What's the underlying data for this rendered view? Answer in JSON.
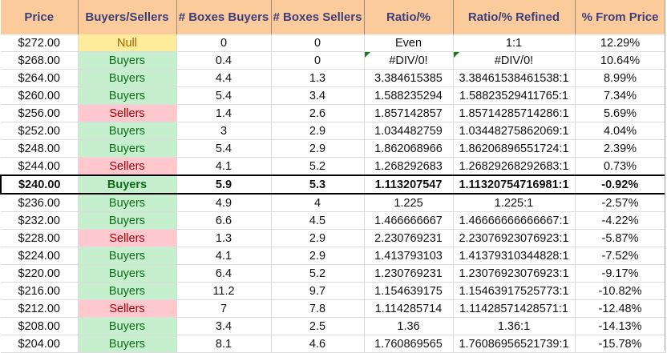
{
  "sheet": {
    "columns": [
      "Price",
      "Buyers/Sellers",
      "# Boxes Buyers",
      "# Boxes Sellers",
      "Ratio/%",
      "Ratio/% Refined",
      "% From Price"
    ],
    "current_price_row_index": 8,
    "colors": {
      "header_bg": "#fccb9b",
      "header_text": "#3d3f7a",
      "buyers_bg": "#c6efce",
      "buyers_text": "#0f6a1a",
      "sellers_bg": "#ffc7ce",
      "sellers_text": "#9c0006",
      "null_bg": "#ffeb9c",
      "null_text": "#9c6500"
    },
    "rows": [
      {
        "price": "$272.00",
        "side": "Null",
        "boxes_buyers": "0",
        "boxes_sellers": "0",
        "ratio": "Even",
        "ratio_refined": "1:1",
        "pct_from_price": "12.29%"
      },
      {
        "price": "$268.00",
        "side": "Buyers",
        "boxes_buyers": "0.4",
        "boxes_sellers": "0",
        "ratio": "#DIV/0!",
        "ratio_refined": "#DIV/0!",
        "pct_from_price": "10.64%",
        "error_flag": true
      },
      {
        "price": "$264.00",
        "side": "Buyers",
        "boxes_buyers": "4.4",
        "boxes_sellers": "1.3",
        "ratio": "3.384615385",
        "ratio_refined": "3.38461538461538:1",
        "pct_from_price": "8.99%"
      },
      {
        "price": "$260.00",
        "side": "Buyers",
        "boxes_buyers": "5.4",
        "boxes_sellers": "3.4",
        "ratio": "1.588235294",
        "ratio_refined": "1.58823529411765:1",
        "pct_from_price": "7.34%"
      },
      {
        "price": "$256.00",
        "side": "Sellers",
        "boxes_buyers": "1.4",
        "boxes_sellers": "2.6",
        "ratio": "1.857142857",
        "ratio_refined": "1.85714285714286:1",
        "pct_from_price": "5.69%"
      },
      {
        "price": "$252.00",
        "side": "Buyers",
        "boxes_buyers": "3",
        "boxes_sellers": "2.9",
        "ratio": "1.034482759",
        "ratio_refined": "1.03448275862069:1",
        "pct_from_price": "4.04%"
      },
      {
        "price": "$248.00",
        "side": "Buyers",
        "boxes_buyers": "5.4",
        "boxes_sellers": "2.9",
        "ratio": "1.862068966",
        "ratio_refined": "1.86206896551724:1",
        "pct_from_price": "2.39%"
      },
      {
        "price": "$244.00",
        "side": "Sellers",
        "boxes_buyers": "4.1",
        "boxes_sellers": "5.2",
        "ratio": "1.268292683",
        "ratio_refined": "1.26829268292683:1",
        "pct_from_price": "0.73%"
      },
      {
        "price": "$240.00",
        "side": "Buyers",
        "boxes_buyers": "5.9",
        "boxes_sellers": "5.3",
        "ratio": "1.113207547",
        "ratio_refined": "1.11320754716981:1",
        "pct_from_price": "-0.92%"
      },
      {
        "price": "$236.00",
        "side": "Buyers",
        "boxes_buyers": "4.9",
        "boxes_sellers": "4",
        "ratio": "1.225",
        "ratio_refined": "1.225:1",
        "pct_from_price": "-2.57%"
      },
      {
        "price": "$232.00",
        "side": "Buyers",
        "boxes_buyers": "6.6",
        "boxes_sellers": "4.5",
        "ratio": "1.466666667",
        "ratio_refined": "1.46666666666667:1",
        "pct_from_price": "-4.22%"
      },
      {
        "price": "$228.00",
        "side": "Sellers",
        "boxes_buyers": "1.3",
        "boxes_sellers": "2.9",
        "ratio": "2.230769231",
        "ratio_refined": "2.23076923076923:1",
        "pct_from_price": "-5.87%"
      },
      {
        "price": "$224.00",
        "side": "Buyers",
        "boxes_buyers": "4.1",
        "boxes_sellers": "2.9",
        "ratio": "1.413793103",
        "ratio_refined": "1.41379310344828:1",
        "pct_from_price": "-7.52%"
      },
      {
        "price": "$220.00",
        "side": "Buyers",
        "boxes_buyers": "6.4",
        "boxes_sellers": "5.2",
        "ratio": "1.230769231",
        "ratio_refined": "1.23076923076923:1",
        "pct_from_price": "-9.17%"
      },
      {
        "price": "$216.00",
        "side": "Buyers",
        "boxes_buyers": "11.2",
        "boxes_sellers": "9.7",
        "ratio": "1.154639175",
        "ratio_refined": "1.15463917525773:1",
        "pct_from_price": "-10.82%"
      },
      {
        "price": "$212.00",
        "side": "Sellers",
        "boxes_buyers": "7",
        "boxes_sellers": "7.8",
        "ratio": "1.114285714",
        "ratio_refined": "1.11428571428571:1",
        "pct_from_price": "-12.48%"
      },
      {
        "price": "$208.00",
        "side": "Buyers",
        "boxes_buyers": "3.4",
        "boxes_sellers": "2.5",
        "ratio": "1.36",
        "ratio_refined": "1.36:1",
        "pct_from_price": "-14.13%"
      },
      {
        "price": "$204.00",
        "side": "Buyers",
        "boxes_buyers": "8.1",
        "boxes_sellers": "4.6",
        "ratio": "1.760869565",
        "ratio_refined": "1.76086956521739:1",
        "pct_from_price": "-15.78%"
      }
    ]
  }
}
